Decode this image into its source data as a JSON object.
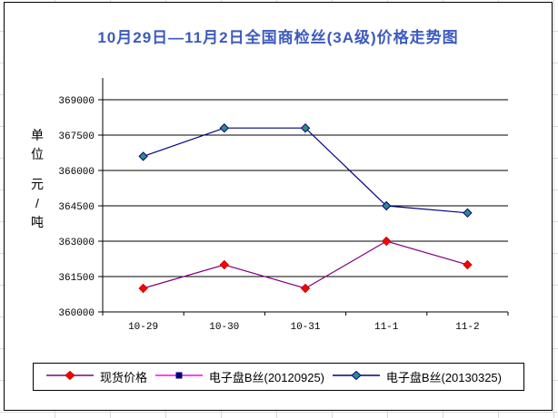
{
  "window": {
    "background_grid_color": "#d9d9d9",
    "chart_background": "#ffffff",
    "chart_border_color": "#000000"
  },
  "chart_data": {
    "type": "line",
    "title": "10月29日—11月2日全国商检丝(3A级)价格走势图",
    "title_color": "#3C5ABE",
    "ylabel": "单位 元/吨",
    "xlabel": "",
    "categories": [
      "10-29",
      "10-30",
      "10-31",
      "11-1",
      "11-2"
    ],
    "y_tick_labels": [
      "369000",
      "367500",
      "366000",
      "364500",
      "363000",
      "361500",
      "360000"
    ],
    "ylim": [
      360000,
      369000
    ],
    "y_step": 1500,
    "grid": "horizontal-only",
    "legend_position": "bottom",
    "axis_color": "#000000",
    "series": [
      {
        "name": "现货价格",
        "values": [
          361000,
          362000,
          361000,
          363000,
          362000
        ],
        "line_color": "#800080",
        "marker": "diamond",
        "marker_color": "#FF0000",
        "marker_outline": "#CC0000"
      },
      {
        "name": "电子盘B丝(20120925)",
        "values": [
          null,
          null,
          null,
          null,
          null
        ],
        "line_color": "#FF00FF",
        "marker": "square",
        "marker_color": "#000080",
        "marker_outline": "#000080"
      },
      {
        "name": "电子盘B丝(20130325)",
        "values": [
          366600,
          367800,
          367800,
          364500,
          364200
        ],
        "line_color": "#000080",
        "marker": "diamond",
        "marker_color": "#2E8B8B",
        "marker_outline": "#000080"
      }
    ]
  }
}
